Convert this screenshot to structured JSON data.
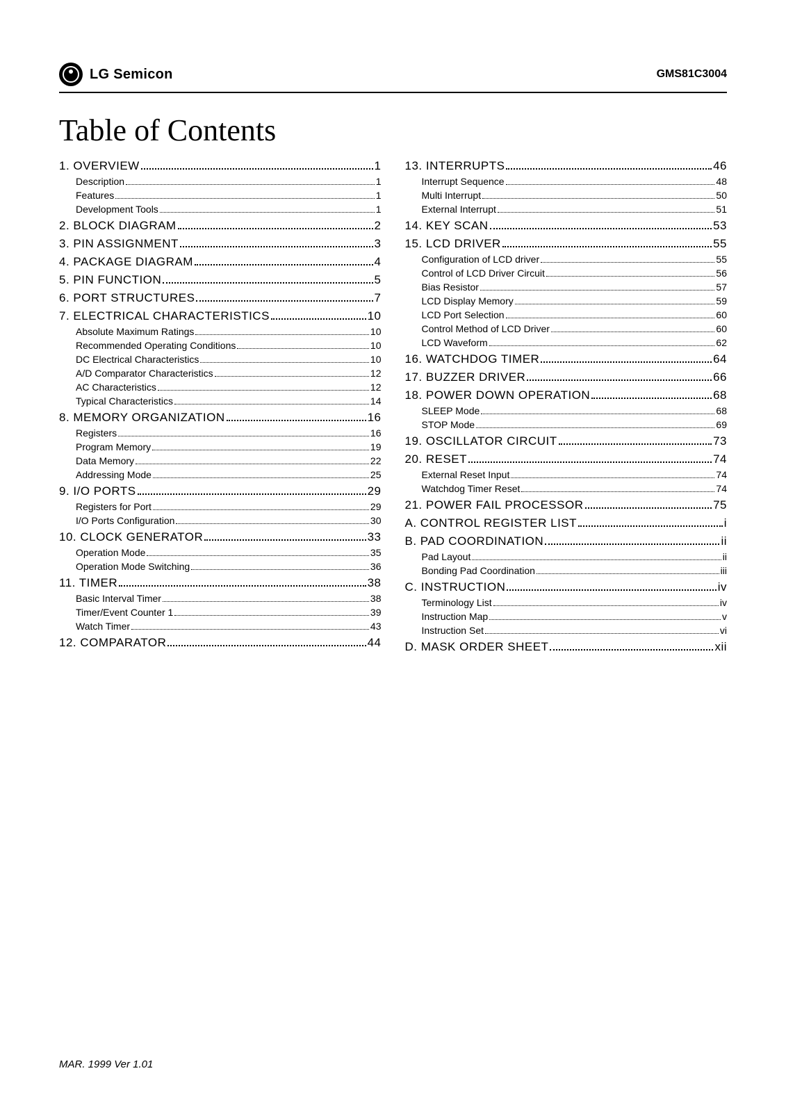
{
  "header": {
    "logo_text": "LG Semicon",
    "doc_id": "GMS81C3004"
  },
  "title": "Table of Contents",
  "columns": [
    [
      {
        "type": "section",
        "label": "1. OVERVIEW",
        "page": "1",
        "subs": [
          {
            "label": "Description",
            "page": "1"
          },
          {
            "label": "Features",
            "page": "1"
          },
          {
            "label": "Development Tools",
            "page": "1"
          }
        ]
      },
      {
        "type": "section",
        "label": "2. BLOCK DIAGRAM",
        "page": "2",
        "subs": []
      },
      {
        "type": "section",
        "label": "3. PIN ASSIGNMENT",
        "page": "3",
        "subs": []
      },
      {
        "type": "section",
        "label": "4. PACKAGE DIAGRAM",
        "page": "4",
        "subs": []
      },
      {
        "type": "section",
        "label": "5. PIN FUNCTION",
        "page": "5",
        "subs": []
      },
      {
        "type": "section",
        "label": "6. PORT STRUCTURES",
        "page": "7",
        "subs": []
      },
      {
        "type": "section",
        "label": "7. ELECTRICAL CHARACTERISTICS",
        "page": "10",
        "subs": [
          {
            "label": "Absolute Maximum Ratings",
            "page": "10"
          },
          {
            "label": "Recommended Operating Conditions",
            "page": "10"
          },
          {
            "label": "DC Electrical Characteristics",
            "page": "10"
          },
          {
            "label": "A/D Comparator Characteristics",
            "page": "12"
          },
          {
            "label": "AC Characteristics",
            "page": "12"
          },
          {
            "label": "Typical Characteristics",
            "page": "14"
          }
        ]
      },
      {
        "type": "section",
        "label": "8. MEMORY ORGANIZATION",
        "page": "16",
        "subs": [
          {
            "label": "Registers",
            "page": "16"
          },
          {
            "label": "Program Memory",
            "page": "19"
          },
          {
            "label": "Data Memory",
            "page": "22"
          },
          {
            "label": "Addressing Mode",
            "page": "25"
          }
        ]
      },
      {
        "type": "section",
        "label": "9. I/O PORTS",
        "page": "29",
        "subs": [
          {
            "label": "Registers for Port",
            "page": "29"
          },
          {
            "label": "I/O Ports Configuration",
            "page": "30"
          }
        ]
      },
      {
        "type": "section",
        "label": "10. CLOCK GENERATOR",
        "page": "33",
        "subs": [
          {
            "label": "Operation Mode",
            "page": "35"
          },
          {
            "label": "Operation Mode Switching",
            "page": "36"
          }
        ]
      },
      {
        "type": "section",
        "label": "11. TIMER",
        "page": "38",
        "subs": [
          {
            "label": "Basic Interval Timer",
            "page": "38"
          },
          {
            "label": "Timer/Event Counter 1",
            "page": "39"
          },
          {
            "label": "Watch Timer",
            "page": "43"
          }
        ]
      },
      {
        "type": "section",
        "label": "12. COMPARATOR",
        "page": "44",
        "subs": []
      }
    ],
    [
      {
        "type": "section",
        "label": "13. INTERRUPTS",
        "page": "46",
        "subs": [
          {
            "label": "Interrupt Sequence",
            "page": "48"
          },
          {
            "label": "Multi Interrupt",
            "page": "50"
          },
          {
            "label": "External Interrupt",
            "page": "51"
          }
        ]
      },
      {
        "type": "section",
        "label": "14. KEY SCAN",
        "page": "53",
        "subs": []
      },
      {
        "type": "section",
        "label": "15. LCD DRIVER",
        "page": "55",
        "subs": [
          {
            "label": "Configuration of LCD driver",
            "page": "55"
          },
          {
            "label": "Control of LCD Driver Circuit",
            "page": "56"
          },
          {
            "label": "Bias Resistor",
            "page": "57"
          },
          {
            "label": "LCD Display Memory",
            "page": "59"
          },
          {
            "label": "LCD Port Selection",
            "page": "60"
          },
          {
            "label": "Control Method of LCD Driver",
            "page": "60"
          },
          {
            "label": "LCD Waveform",
            "page": "62"
          }
        ]
      },
      {
        "type": "section",
        "label": "16. WATCHDOG TIMER",
        "page": "64",
        "subs": []
      },
      {
        "type": "section",
        "label": "17. BUZZER DRIVER",
        "page": "66",
        "subs": []
      },
      {
        "type": "section",
        "label": "18. POWER DOWN OPERATION",
        "page": "68",
        "subs": [
          {
            "label": "SLEEP Mode",
            "page": "68"
          },
          {
            "label": "STOP Mode",
            "page": "69"
          }
        ]
      },
      {
        "type": "section",
        "label": "19. OSCILLATOR CIRCUIT",
        "page": "73",
        "subs": []
      },
      {
        "type": "section",
        "label": "20. RESET",
        "page": "74",
        "subs": [
          {
            "label": "External Reset Input",
            "page": "74"
          },
          {
            "label": "Watchdog Timer Reset",
            "page": "74"
          }
        ]
      },
      {
        "type": "section",
        "label": "21. POWER FAIL PROCESSOR",
        "page": "75",
        "subs": []
      },
      {
        "type": "section",
        "label": "A. CONTROL REGISTER LIST",
        "page": "i",
        "subs": []
      },
      {
        "type": "section",
        "label": "B. PAD COORDINATION",
        "page": "ii",
        "subs": [
          {
            "label": "Pad Layout",
            "page": "ii"
          },
          {
            "label": "Bonding Pad Coordination",
            "page": "iii"
          }
        ]
      },
      {
        "type": "section",
        "label": "C. INSTRUCTION",
        "page": "iv",
        "subs": [
          {
            "label": "Terminology List",
            "page": "iv"
          },
          {
            "label": "Instruction Map",
            "page": "v"
          },
          {
            "label": "Instruction Set",
            "page": "vi"
          }
        ]
      },
      {
        "type": "section",
        "label": "D. MASK ORDER SHEET",
        "page": "xii",
        "subs": []
      }
    ]
  ],
  "footer": "MAR. 1999 Ver 1.01"
}
